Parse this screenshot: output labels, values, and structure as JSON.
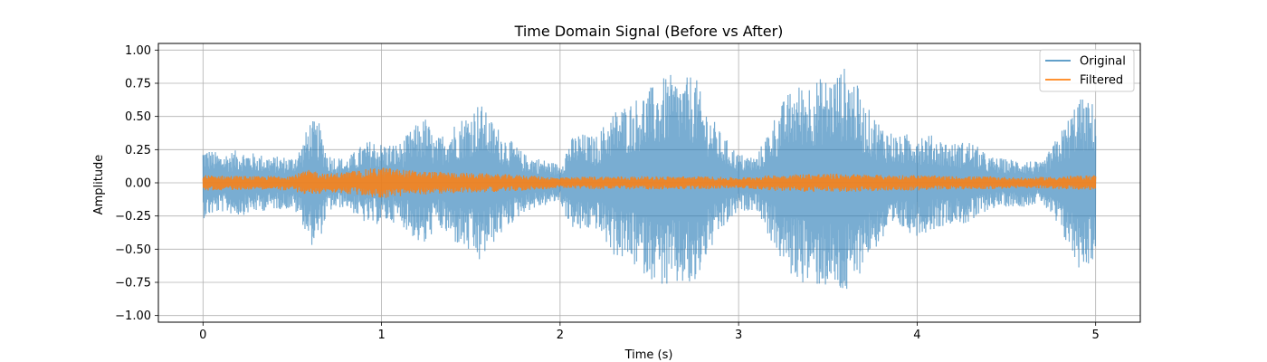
{
  "chart_data": {
    "type": "line",
    "title": "Time Domain Signal (Before vs After)",
    "xlabel": "Time (s)",
    "ylabel": "Amplitude",
    "xlim": [
      -0.25,
      5.25
    ],
    "ylim": [
      -1.05,
      1.05
    ],
    "x_ticks": [
      0,
      1,
      2,
      3,
      4,
      5
    ],
    "y_ticks": [
      -1.0,
      -0.75,
      -0.5,
      -0.25,
      0.0,
      0.25,
      0.5,
      0.75,
      1.0
    ],
    "x_tick_labels": [
      "0",
      "1",
      "2",
      "3",
      "4",
      "5"
    ],
    "y_tick_labels": [
      "−1.00",
      "−0.75",
      "−0.50",
      "−0.25",
      "0.00",
      "0.25",
      "0.50",
      "0.75",
      "1.00"
    ],
    "grid": true,
    "legend_position": "top-right",
    "series": [
      {
        "name": "Original",
        "color": "#1f77b4",
        "opacity": 0.6,
        "envelope": {
          "x": [
            0.0,
            0.1,
            0.2,
            0.3,
            0.4,
            0.5,
            0.55,
            0.6,
            0.65,
            0.7,
            0.8,
            0.9,
            0.95,
            1.0,
            1.1,
            1.2,
            1.25,
            1.3,
            1.4,
            1.5,
            1.55,
            1.6,
            1.7,
            1.8,
            1.9,
            2.0,
            2.05,
            2.1,
            2.2,
            2.3,
            2.4,
            2.5,
            2.55,
            2.6,
            2.7,
            2.75,
            2.8,
            2.9,
            3.0,
            3.1,
            3.2,
            3.25,
            3.3,
            3.4,
            3.5,
            3.6,
            3.65,
            3.7,
            3.8,
            3.9,
            4.0,
            4.1,
            4.2,
            4.3,
            4.4,
            4.5,
            4.6,
            4.7,
            4.8,
            4.85,
            4.9,
            5.0
          ],
          "amplitude": [
            0.27,
            0.22,
            0.25,
            0.22,
            0.2,
            0.2,
            0.28,
            0.48,
            0.45,
            0.22,
            0.18,
            0.3,
            0.33,
            0.3,
            0.3,
            0.45,
            0.5,
            0.32,
            0.45,
            0.55,
            0.62,
            0.5,
            0.35,
            0.22,
            0.18,
            0.14,
            0.32,
            0.38,
            0.35,
            0.55,
            0.62,
            0.72,
            0.75,
            0.82,
            0.78,
            0.85,
            0.62,
            0.38,
            0.22,
            0.2,
            0.5,
            0.62,
            0.72,
            0.78,
            0.8,
            0.88,
            0.8,
            0.6,
            0.45,
            0.35,
            0.4,
            0.35,
            0.3,
            0.32,
            0.2,
            0.18,
            0.18,
            0.15,
            0.38,
            0.5,
            0.65,
            0.6
          ]
        }
      },
      {
        "name": "Filtered",
        "color": "#ff7f0e",
        "opacity": 0.85,
        "envelope": {
          "x": [
            0.0,
            0.3,
            0.5,
            0.6,
            0.7,
            0.9,
            1.0,
            1.2,
            1.4,
            1.6,
            1.8,
            2.0,
            2.2,
            2.4,
            2.6,
            2.8,
            3.0,
            3.2,
            3.4,
            3.6,
            3.8,
            4.0,
            4.2,
            4.4,
            4.6,
            4.8,
            5.0
          ],
          "amplitude": [
            0.06,
            0.05,
            0.06,
            0.1,
            0.07,
            0.1,
            0.12,
            0.09,
            0.08,
            0.07,
            0.06,
            0.04,
            0.05,
            0.05,
            0.05,
            0.05,
            0.04,
            0.06,
            0.07,
            0.07,
            0.06,
            0.06,
            0.05,
            0.05,
            0.04,
            0.05,
            0.06
          ]
        }
      }
    ]
  }
}
